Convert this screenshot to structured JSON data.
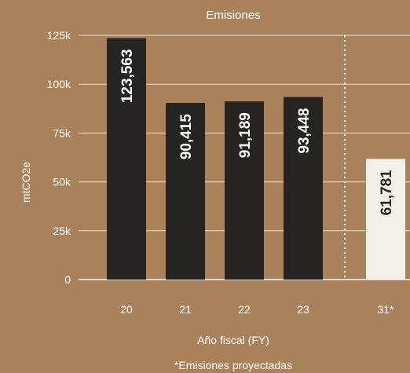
{
  "chart_data": {
    "type": "bar",
    "title": "Emisiones",
    "xlabel": "Año fiscal (FY)",
    "ylabel": "mtCO2e",
    "ylim": [
      0,
      125000
    ],
    "yticks": [
      0,
      25000,
      50000,
      75000,
      100000,
      125000
    ],
    "ytick_labels": [
      "0",
      "25k",
      "50k",
      "75k",
      "100k",
      "125k"
    ],
    "categories": [
      "20",
      "21",
      "22",
      "23",
      "31*"
    ],
    "values": [
      123563,
      90415,
      91189,
      93448,
      61781
    ],
    "value_labels": [
      "123,563",
      "90,415",
      "91,189",
      "93,448",
      "61,781"
    ],
    "projected": [
      false,
      false,
      false,
      false,
      true
    ],
    "footnote": "*Emisiones proyectadas",
    "grid": "horizontal",
    "colors": {
      "background": "#a9825c",
      "bar": "#262422",
      "bar_projected": "#f3efe9",
      "grid": "#ffffff",
      "label_on_dark": "#ffffff",
      "label_on_light": "#262422"
    }
  }
}
